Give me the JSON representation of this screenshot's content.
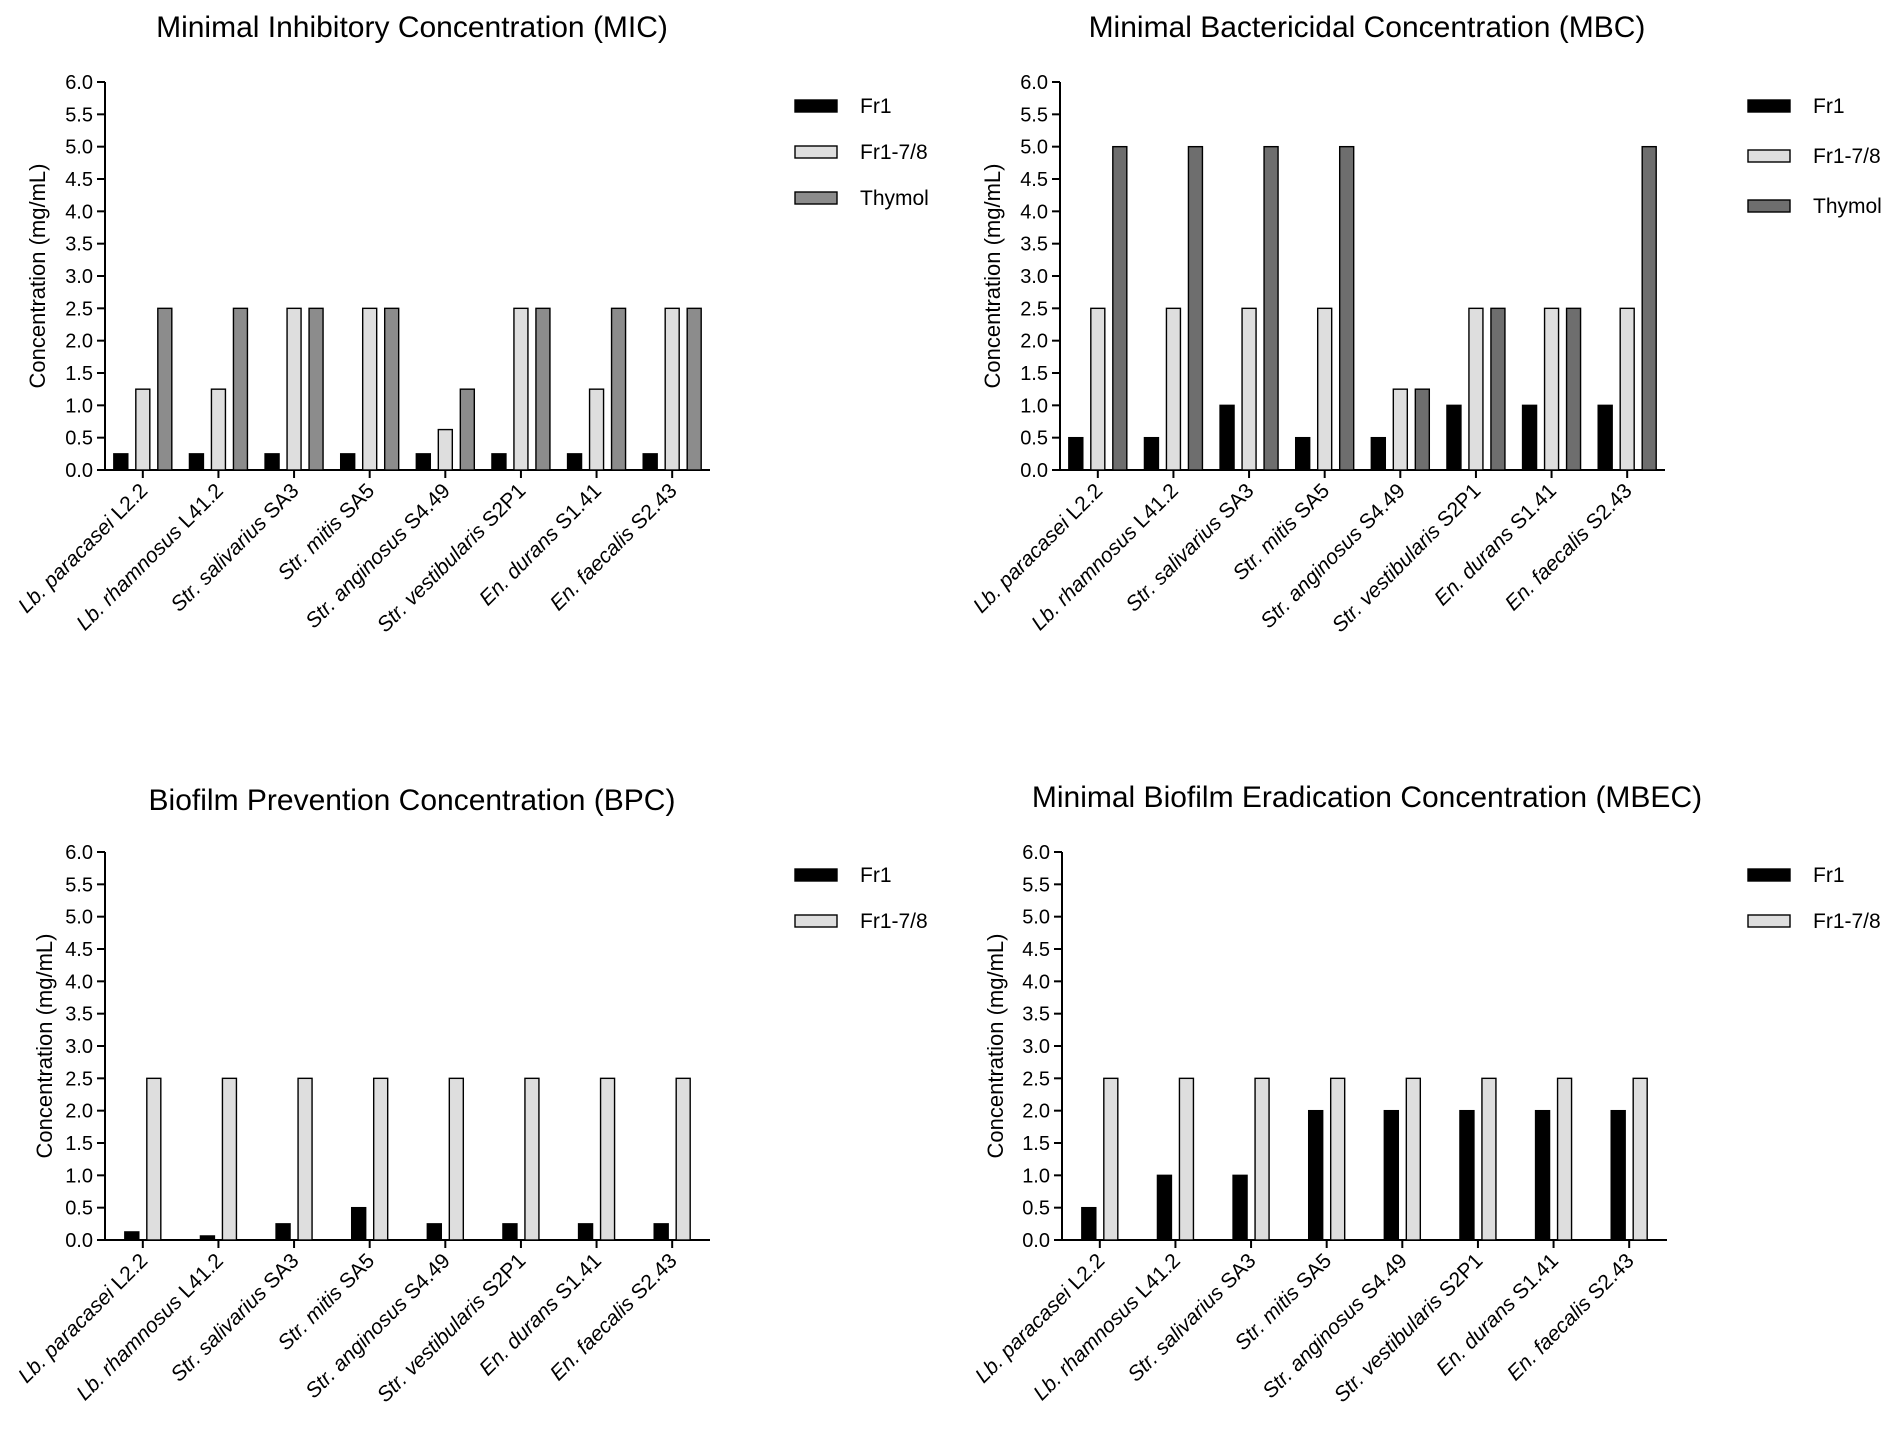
{
  "chart_data": [
    {
      "type": "bar",
      "title": "Minimal Inhibitory Concentration (MIC)",
      "xlabel": "",
      "ylabel": "Concentration (mg/mL)",
      "ylim": [
        0,
        6
      ],
      "yticks": [
        0,
        0.5,
        1,
        1.5,
        2,
        2.5,
        3,
        3.5,
        4,
        4.5,
        5,
        5.5,
        6
      ],
      "ytick_labels": [
        "0.0",
        "0.5",
        "1.0",
        "1.5",
        "2.0",
        "2.5",
        "3.0",
        "3.5",
        "4.0",
        "4.5",
        "5.0",
        "5.5",
        "6.0"
      ],
      "categories": [
        {
          "genus": "Lb.",
          "species": "paracasei",
          "strain": "L2.2"
        },
        {
          "genus": "Lb.",
          "species": "rhamnosus",
          "strain": "L41.2"
        },
        {
          "genus": "Str.",
          "species": "salivarius",
          "strain": "SA3"
        },
        {
          "genus": "Str.",
          "species": "mitis",
          "strain": "SA5"
        },
        {
          "genus": "Str.",
          "species": "anginosus",
          "strain": "S4.49"
        },
        {
          "genus": "Str.",
          "species": "vestibularis",
          "strain": "S2P1"
        },
        {
          "genus": "En.",
          "species": "durans",
          "strain": "S1.41"
        },
        {
          "genus": "En.",
          "species": "faecalis",
          "strain": "S2.43"
        }
      ],
      "series": [
        {
          "name": "Fr1",
          "color": "#000000",
          "values": [
            0.25,
            0.25,
            0.25,
            0.25,
            0.25,
            0.25,
            0.25,
            0.25
          ]
        },
        {
          "name": "Fr1-7/8",
          "color": "#dedede",
          "values": [
            1.25,
            1.25,
            2.5,
            2.5,
            0.625,
            2.5,
            1.25,
            2.5
          ]
        },
        {
          "name": "Thymol",
          "color": "#8c8c8c",
          "values": [
            2.5,
            2.5,
            2.5,
            2.5,
            1.25,
            2.5,
            2.5,
            2.5
          ]
        }
      ],
      "legend": "right"
    },
    {
      "type": "bar",
      "title": "Minimal Bactericidal Concentration (MBC)",
      "xlabel": "",
      "ylabel": "Concentration (mg/mL)",
      "ylim": [
        0,
        6
      ],
      "yticks": [
        0,
        0.5,
        1,
        1.5,
        2,
        2.5,
        3,
        3.5,
        4,
        4.5,
        5,
        5.5,
        6
      ],
      "ytick_labels": [
        "0.0",
        "0.5",
        "1.0",
        "1.5",
        "2.0",
        "2.5",
        "3.0",
        "3.5",
        "4.0",
        "4.5",
        "5.0",
        "5.5",
        "6.0"
      ],
      "categories": [
        {
          "genus": "Lb.",
          "species": "paracasei",
          "strain": "L2.2"
        },
        {
          "genus": "Lb.",
          "species": "rhamnosus",
          "strain": "L41.2"
        },
        {
          "genus": "Str.",
          "species": "salivarius",
          "strain": "SA3"
        },
        {
          "genus": "Str.",
          "species": "mitis",
          "strain": "SA5"
        },
        {
          "genus": "Str.",
          "species": "anginosus",
          "strain": "S4.49"
        },
        {
          "genus": "Str.",
          "species": "vestibularis",
          "strain": "S2P1"
        },
        {
          "genus": "En.",
          "species": "durans",
          "strain": "S1.41"
        },
        {
          "genus": "En.",
          "species": "faecalis",
          "strain": "S2.43"
        }
      ],
      "series": [
        {
          "name": "Fr1",
          "color": "#000000",
          "values": [
            0.5,
            0.5,
            1,
            0.5,
            0.5,
            1,
            1,
            1
          ]
        },
        {
          "name": "Fr1-7/8",
          "color": "#dedede",
          "values": [
            2.5,
            2.5,
            2.5,
            2.5,
            1.25,
            2.5,
            2.5,
            2.5
          ]
        },
        {
          "name": "Thymol",
          "color": "#6e6e6e",
          "values": [
            5,
            5,
            5,
            5,
            1.25,
            2.5,
            2.5,
            5
          ]
        }
      ],
      "legend": "right"
    },
    {
      "type": "bar",
      "title": "Biofilm Prevention Concentration (BPC)",
      "xlabel": "",
      "ylabel": "Concentration (mg/mL)",
      "ylim": [
        0,
        6
      ],
      "yticks": [
        0,
        0.5,
        1,
        1.5,
        2,
        2.5,
        3,
        3.5,
        4,
        4.5,
        5,
        5.5,
        6
      ],
      "ytick_labels": [
        "0.0",
        "0.5",
        "1.0",
        "1.5",
        "2.0",
        "2.5",
        "3.0",
        "3.5",
        "4.0",
        "4.5",
        "5.0",
        "5.5",
        "6.0"
      ],
      "categories": [
        {
          "genus": "Lb.",
          "species": "paracasei",
          "strain": "L2.2"
        },
        {
          "genus": "Lb.",
          "species": "rhamnosus",
          "strain": "L41.2"
        },
        {
          "genus": "Str.",
          "species": "salivarius",
          "strain": "SA3"
        },
        {
          "genus": "Str.",
          "species": "mitis",
          "strain": "SA5"
        },
        {
          "genus": "Str.",
          "species": "anginosus",
          "strain": "S4.49"
        },
        {
          "genus": "Str.",
          "species": "vestibularis",
          "strain": "S2P1"
        },
        {
          "genus": "En.",
          "species": "durans",
          "strain": "S1.41"
        },
        {
          "genus": "En.",
          "species": "faecalis",
          "strain": "S2.43"
        }
      ],
      "series": [
        {
          "name": "Fr1",
          "color": "#000000",
          "values": [
            0.125,
            0.0625,
            0.25,
            0.5,
            0.25,
            0.25,
            0.25,
            0.25
          ]
        },
        {
          "name": "Fr1-7/8",
          "color": "#dedede",
          "values": [
            2.5,
            2.5,
            2.5,
            2.5,
            2.5,
            2.5,
            2.5,
            2.5
          ]
        }
      ],
      "legend": "right"
    },
    {
      "type": "bar",
      "title": "Minimal Biofilm Eradication Concentration (MBEC)",
      "xlabel": "",
      "ylabel": "Concentration (mg/mL)",
      "ylim": [
        0,
        6
      ],
      "yticks": [
        0,
        0.5,
        1,
        1.5,
        2,
        2.5,
        3,
        3.5,
        4,
        4.5,
        5,
        5.5,
        6
      ],
      "ytick_labels": [
        "0.0",
        "0.5",
        "1.0",
        "1.5",
        "2.0",
        "2.5",
        "3.0",
        "3.5",
        "4.0",
        "4.5",
        "5.0",
        "5.5",
        "6.0"
      ],
      "categories": [
        {
          "genus": "Lb.",
          "species": "paracasei",
          "strain": "L2.2"
        },
        {
          "genus": "Lb.",
          "species": "rhamnosus",
          "strain": "L41.2"
        },
        {
          "genus": "Str.",
          "species": "salivarius",
          "strain": "SA3"
        },
        {
          "genus": "Str.",
          "species": "mitis",
          "strain": "SA5"
        },
        {
          "genus": "Str.",
          "species": "anginosus",
          "strain": "S4.49"
        },
        {
          "genus": "Str.",
          "species": "vestibularis",
          "strain": "S2P1"
        },
        {
          "genus": "En.",
          "species": "durans",
          "strain": "S1.41"
        },
        {
          "genus": "En.",
          "species": "faecalis",
          "strain": "S2.43"
        }
      ],
      "series": [
        {
          "name": "Fr1",
          "color": "#000000",
          "values": [
            0.5,
            1,
            1,
            2,
            2,
            2,
            2,
            2
          ]
        },
        {
          "name": "Fr1-7/8",
          "color": "#dedede",
          "values": [
            2.5,
            2.5,
            2.5,
            2.5,
            2.5,
            2.5,
            2.5,
            2.5
          ]
        }
      ],
      "legend": "right"
    }
  ]
}
